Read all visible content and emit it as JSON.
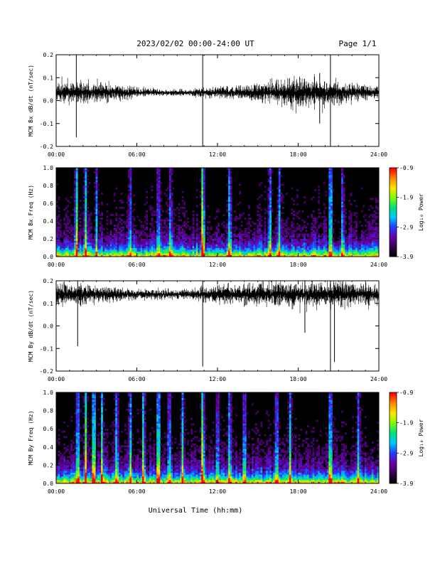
{
  "header": {
    "date_range": "2023/02/02  00:00-24:00 UT",
    "page": "Page 1/1"
  },
  "footer": {
    "xlabel": "Universal Time (hh:mm)"
  },
  "colors": {
    "trace": "#000000",
    "spec_background": "#000000",
    "colormap": [
      "#000000",
      "#3a0057",
      "#6a00a8",
      "#1f3fff",
      "#00c8ff",
      "#00e080",
      "#7cff00",
      "#ffe600",
      "#ff8a00",
      "#ff0000"
    ]
  },
  "chart_data": [
    {
      "type": "line",
      "ylabel": "MCM Bx dB/dt (nT/sec)",
      "xlim": [
        0,
        24
      ],
      "ylim": [
        -0.2,
        0.2
      ],
      "yticks": [
        "0.2",
        "0.1",
        "0.0",
        "-0.1",
        "-0.2"
      ],
      "xticks": [
        "00:00",
        "06:00",
        "12:00",
        "18:00",
        "24:00"
      ],
      "baseline": 0.035,
      "noise_profile": [
        [
          0,
          0.045
        ],
        [
          2,
          0.04
        ],
        [
          4,
          0.035
        ],
        [
          6,
          0.02
        ],
        [
          8,
          0.012
        ],
        [
          10,
          0.012
        ],
        [
          12,
          0.022
        ],
        [
          14,
          0.028
        ],
        [
          16,
          0.04
        ],
        [
          17,
          0.05
        ],
        [
          18,
          0.06
        ],
        [
          19,
          0.055
        ],
        [
          20,
          0.05
        ],
        [
          22,
          0.035
        ],
        [
          24,
          0.025
        ]
      ],
      "spikes": [
        {
          "t": 1.5,
          "min": -0.16,
          "max": 0.2
        },
        {
          "t": 10.9,
          "min": -0.2,
          "max": 0.2
        },
        {
          "t": 20.4,
          "min": -0.2,
          "max": 0.2
        },
        {
          "t": 19.6,
          "min": -0.1,
          "max": 0.12
        }
      ]
    },
    {
      "type": "heatmap",
      "ylabel": "MCM Bx Freq (Hz)",
      "xlim": [
        0,
        24
      ],
      "ylim": [
        0,
        1.0
      ],
      "yticks": [
        "1.0",
        "0.8",
        "0.6",
        "0.4",
        "0.2",
        "0.0"
      ],
      "xticks": [
        "00:00",
        "06:00",
        "12:00",
        "18:00",
        "24:00"
      ],
      "colorbar": {
        "label": "Log₁₀ Power",
        "ticks": [
          "-0.9",
          "-1.9",
          "-2.9",
          "-3.9"
        ],
        "range": [
          -3.9,
          -0.9
        ]
      },
      "activity_bands": [
        {
          "t": 1.5,
          "level": 0.75
        },
        {
          "t": 2.2,
          "level": 0.6
        },
        {
          "t": 3.0,
          "level": 0.45
        },
        {
          "t": 5.5,
          "level": 0.4
        },
        {
          "t": 7.6,
          "level": 0.5
        },
        {
          "t": 8.5,
          "level": 0.4
        },
        {
          "t": 10.9,
          "level": 0.95
        },
        {
          "t": 12.9,
          "level": 0.55
        },
        {
          "t": 15.9,
          "level": 0.55
        },
        {
          "t": 16.6,
          "level": 0.5
        },
        {
          "t": 20.4,
          "level": 0.8
        },
        {
          "t": 21.3,
          "level": 0.45
        }
      ]
    },
    {
      "type": "line",
      "ylabel": "MCM By dB/dt (nT/sec)",
      "xlim": [
        0,
        24
      ],
      "ylim": [
        -0.2,
        0.2
      ],
      "yticks": [
        "0.2",
        "0.1",
        "0.0",
        "-0.1",
        "-0.2"
      ],
      "xticks": [
        "00:00",
        "06:00",
        "12:00",
        "18:00",
        "24:00"
      ],
      "baseline": 0.14,
      "noise_profile": [
        [
          0,
          0.05
        ],
        [
          2,
          0.04
        ],
        [
          4,
          0.03
        ],
        [
          6,
          0.02
        ],
        [
          8,
          0.02
        ],
        [
          10,
          0.02
        ],
        [
          11,
          0.03
        ],
        [
          14,
          0.04
        ],
        [
          16,
          0.045
        ],
        [
          18,
          0.05
        ],
        [
          20,
          0.05
        ],
        [
          22,
          0.05
        ],
        [
          24,
          0.04
        ]
      ],
      "spikes": [
        {
          "t": 1.6,
          "min": -0.09,
          "max": 0.2
        },
        {
          "t": 10.9,
          "min": -0.18,
          "max": 0.2
        },
        {
          "t": 20.4,
          "min": -0.2,
          "max": 0.2
        },
        {
          "t": 20.7,
          "min": -0.16,
          "max": 0.18
        },
        {
          "t": 18.5,
          "min": -0.03,
          "max": 0.2
        }
      ]
    },
    {
      "type": "heatmap",
      "ylabel": "MCM By Freq (Hz)",
      "xlim": [
        0,
        24
      ],
      "ylim": [
        0,
        1.0
      ],
      "yticks": [
        "1.0",
        "0.8",
        "0.6",
        "0.4",
        "0.2",
        "0.0"
      ],
      "xticks": [
        "00:00",
        "06:00",
        "12:00",
        "18:00",
        "24:00"
      ],
      "colorbar": {
        "label": "Log₁₀ Power",
        "ticks": [
          "-0.9",
          "-1.9",
          "-2.9",
          "-3.9"
        ],
        "range": [
          -3.9,
          -0.9
        ]
      },
      "activity_bands": [
        {
          "t": 1.6,
          "level": 0.7
        },
        {
          "t": 2.2,
          "level": 0.75
        },
        {
          "t": 2.8,
          "level": 0.85
        },
        {
          "t": 3.4,
          "level": 0.6
        },
        {
          "t": 4.5,
          "level": 0.55
        },
        {
          "t": 5.5,
          "level": 0.6
        },
        {
          "t": 6.5,
          "level": 0.7
        },
        {
          "t": 7.6,
          "level": 0.85
        },
        {
          "t": 8.4,
          "level": 0.6
        },
        {
          "t": 9.4,
          "level": 0.55
        },
        {
          "t": 10.9,
          "level": 0.9
        },
        {
          "t": 12.0,
          "level": 0.5
        },
        {
          "t": 12.9,
          "level": 0.55
        },
        {
          "t": 14.0,
          "level": 0.55
        },
        {
          "t": 16.4,
          "level": 0.6
        },
        {
          "t": 17.4,
          "level": 0.55
        },
        {
          "t": 20.4,
          "level": 0.75
        },
        {
          "t": 22.5,
          "level": 0.5
        }
      ]
    }
  ]
}
